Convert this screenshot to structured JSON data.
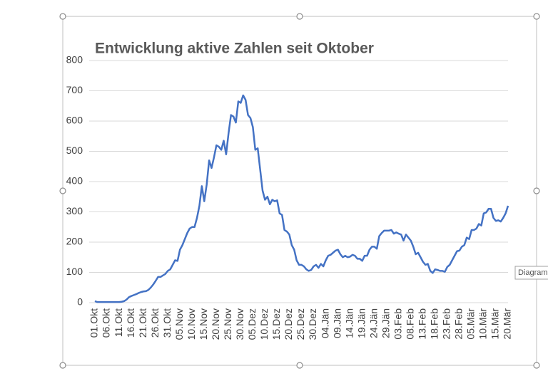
{
  "chart_data": {
    "type": "line",
    "title": "Entwicklung aktive Zahlen seit Oktober",
    "categories": [
      "01.Okt",
      null,
      null,
      null,
      null,
      "06.Okt",
      null,
      null,
      null,
      null,
      "11.Okt",
      null,
      null,
      null,
      null,
      "16.Okt",
      null,
      null,
      null,
      null,
      "21.Okt",
      null,
      null,
      null,
      null,
      "26.Okt",
      null,
      null,
      null,
      null,
      "31.Okt",
      null,
      null,
      null,
      null,
      "05.Nov",
      null,
      null,
      null,
      null,
      "10.Nov",
      null,
      null,
      null,
      null,
      "15.Nov",
      null,
      null,
      null,
      null,
      "20.Nov",
      null,
      null,
      null,
      null,
      "25.Nov",
      null,
      null,
      null,
      null,
      "30.Nov",
      null,
      null,
      null,
      null,
      "05.Dez",
      null,
      null,
      null,
      null,
      "10.Dez",
      null,
      null,
      null,
      null,
      "15.Dez",
      null,
      null,
      null,
      null,
      "20.Dez",
      null,
      null,
      null,
      null,
      "25.Dez",
      null,
      null,
      null,
      null,
      "30.Dez",
      null,
      null,
      null,
      null,
      "04.Jän",
      null,
      null,
      null,
      null,
      "09.Jän",
      null,
      null,
      null,
      null,
      "14.Jän",
      null,
      null,
      null,
      null,
      "19.Jän",
      null,
      null,
      null,
      null,
      "24.Jän",
      null,
      null,
      null,
      null,
      "29.Jän",
      null,
      null,
      null,
      null,
      "03.Feb",
      null,
      null,
      null,
      null,
      "08.Feb",
      null,
      null,
      null,
      null,
      "13.Feb",
      null,
      null,
      null,
      null,
      "18.Feb",
      null,
      null,
      null,
      null,
      "23.Feb",
      null,
      null,
      null,
      null,
      "28.Feb",
      null,
      null,
      null,
      null,
      "05.Mär",
      null,
      null,
      null,
      null,
      "10.Mär",
      null,
      null,
      null,
      null,
      "15.Mär",
      null,
      null,
      null,
      null,
      "20.Mär"
    ],
    "series": [
      {
        "color": "#4472c4",
        "values": [
          5,
          2,
          2,
          2,
          2,
          2,
          2,
          2,
          2,
          2,
          2,
          3,
          5,
          10,
          18,
          22,
          25,
          28,
          32,
          35,
          37,
          38,
          42,
          50,
          60,
          72,
          85,
          85,
          90,
          95,
          105,
          110,
          125,
          140,
          138,
          175,
          190,
          210,
          230,
          245,
          250,
          250,
          280,
          320,
          385,
          335,
          390,
          470,
          445,
          480,
          520,
          515,
          505,
          535,
          490,
          560,
          620,
          615,
          595,
          665,
          660,
          685,
          670,
          620,
          610,
          580,
          505,
          510,
          440,
          370,
          340,
          350,
          325,
          340,
          335,
          338,
          295,
          290,
          240,
          235,
          225,
          190,
          175,
          140,
          125,
          125,
          120,
          110,
          105,
          108,
          120,
          125,
          115,
          128,
          120,
          140,
          155,
          158,
          165,
          172,
          175,
          160,
          150,
          155,
          150,
          152,
          158,
          155,
          145,
          145,
          138,
          155,
          155,
          175,
          185,
          185,
          178,
          220,
          230,
          238,
          238,
          238,
          240,
          228,
          232,
          228,
          225,
          205,
          225,
          215,
          205,
          185,
          160,
          165,
          150,
          135,
          125,
          128,
          105,
          98,
          110,
          108,
          105,
          105,
          102,
          118,
          125,
          140,
          155,
          170,
          172,
          185,
          190,
          215,
          210,
          240,
          240,
          245,
          260,
          255,
          295,
          298,
          310,
          310,
          280,
          270,
          272,
          268,
          280,
          295,
          320
        ]
      }
    ],
    "ylim": [
      0,
      800
    ],
    "yticks": [
      0,
      100,
      200,
      300,
      400,
      500,
      600,
      700,
      800
    ],
    "grid": true
  },
  "tooltip": "Diagram"
}
